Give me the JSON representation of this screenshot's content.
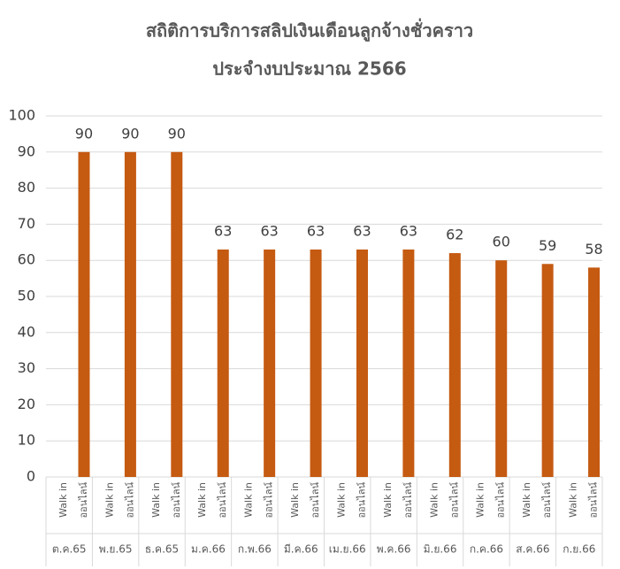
{
  "chart_data": {
    "type": "bar",
    "title": "สถิติการบริการสลิปเงินเดือนลูกจ้างชั่วคราว",
    "subtitle": "ประจำงบประมาณ 2566",
    "categories": [
      "ต.ค.65",
      "พ.ย.65",
      "ธ.ค.65",
      "ม.ค.66",
      "ก.พ.66",
      "มี.ค.66",
      "เม.ย.66",
      "พ.ค.66",
      "มิ.ย.66",
      "ก.ค.66",
      "ส.ค.66",
      "ก.ย.66"
    ],
    "series": [
      {
        "name": "Walk in",
        "values": [
          null,
          null,
          null,
          null,
          null,
          null,
          null,
          null,
          null,
          null,
          null,
          null
        ]
      },
      {
        "name": "ออนไลน์",
        "color": "#c55a11",
        "values": [
          90,
          90,
          90,
          63,
          63,
          63,
          63,
          63,
          62,
          60,
          59,
          58
        ]
      }
    ],
    "ylim": [
      0,
      100
    ],
    "yticks": [
      0,
      10,
      20,
      30,
      40,
      50,
      60,
      70,
      80,
      90,
      100
    ],
    "grid": true
  }
}
